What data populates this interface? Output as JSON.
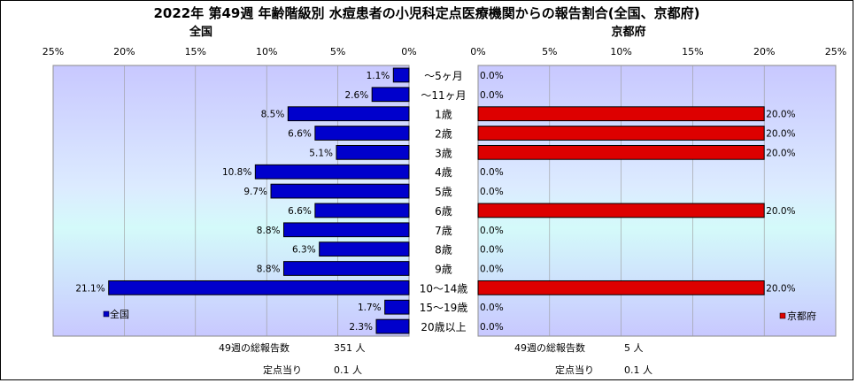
{
  "chart_data": {
    "type": "bar",
    "title": "2022年 第49週 年齢階級別 水痘患者の小児科定点医療機関からの報告割合(全国、京都府)",
    "categories": [
      "～5ヶ月",
      "～11ヶ月",
      "1歳",
      "2歳",
      "3歳",
      "4歳",
      "5歳",
      "6歳",
      "7歳",
      "8歳",
      "9歳",
      "10～14歳",
      "15～19歳",
      "20歳以上"
    ],
    "xlim": [
      0,
      25
    ],
    "ticks": [
      "25%",
      "20%",
      "15%",
      "10%",
      "5%",
      "0%"
    ],
    "ticks_right": [
      "0%",
      "5%",
      "10%",
      "15%",
      "20%",
      "25%"
    ],
    "series": [
      {
        "name": "全国",
        "panel_title": "全国",
        "color": "#0000CC",
        "values": [
          1.1,
          2.6,
          8.5,
          6.6,
          5.1,
          10.8,
          9.7,
          6.6,
          8.8,
          6.3,
          8.8,
          21.1,
          1.7,
          2.3
        ],
        "labels": [
          "1.1%",
          "2.6%",
          "8.5%",
          "6.6%",
          "5.1%",
          "10.8%",
          "9.7%",
          "6.6%",
          "8.8%",
          "6.3%",
          "8.8%",
          "21.1%",
          "1.7%",
          "2.3%"
        ]
      },
      {
        "name": "京都府",
        "panel_title": "京都府",
        "color": "#DD0000",
        "values": [
          0,
          0,
          20,
          20,
          20,
          0,
          0,
          20,
          0,
          0,
          0,
          20,
          0,
          0
        ],
        "labels": [
          "0.0%",
          "0.0%",
          "20.0%",
          "20.0%",
          "20.0%",
          "0.0%",
          "0.0%",
          "20.0%",
          "0.0%",
          "0.0%",
          "0.0%",
          "20.0%",
          "0.0%",
          "0.0%"
        ]
      }
    ],
    "legend": "bottom-corner",
    "grid": true
  },
  "summary": {
    "national": {
      "total_label": "49週の総報告数",
      "total_value": "351 人",
      "per_label": "定点当り",
      "per_value": "0.1 人"
    },
    "kyoto": {
      "total_label": "49週の総報告数",
      "total_value": "5 人",
      "per_label": "定点当り",
      "per_value": "0.1 人"
    }
  }
}
